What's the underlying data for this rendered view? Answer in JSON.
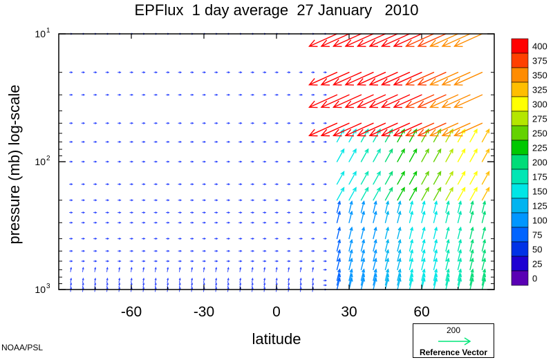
{
  "chart_data": {
    "type": "vector-field",
    "title": "EPFlux  1 day average  27 January   2010",
    "xlabel": "latitude",
    "ylabel": "pressure (mb)  log-scale",
    "x_range": [
      -90,
      90
    ],
    "y_range_mb": [
      1000,
      10
    ],
    "y_scale": "log",
    "x_ticks": [
      -60,
      -30,
      0,
      30,
      60
    ],
    "y_ticks": [
      {
        "value": 10,
        "base": "10",
        "exp": "1"
      },
      {
        "value": 100,
        "base": "10",
        "exp": "2"
      },
      {
        "value": 1000,
        "base": "10",
        "exp": "3"
      }
    ],
    "pressure_levels_mb": [
      1000,
      925,
      850,
      700,
      600,
      500,
      400,
      300,
      250,
      200,
      150,
      100,
      70,
      50,
      30,
      20,
      10
    ],
    "colorbar": {
      "labels": [
        "400",
        "375",
        "350",
        "325",
        "300",
        "275",
        "250",
        "225",
        "200",
        "175",
        "150",
        "125",
        "100",
        "75",
        "50",
        "25",
        "0"
      ],
      "colors": [
        "#ff0000",
        "#ff4000",
        "#ff8c00",
        "#ffbe00",
        "#ffff00",
        "#b4e600",
        "#64d200",
        "#00c800",
        "#00dc78",
        "#00e6b4",
        "#00e6e6",
        "#00b4f0",
        "#0096ff",
        "#0064ff",
        "#0032e6",
        "#1e00d2",
        "#5a00b4"
      ]
    },
    "reference_vector": {
      "magnitude": "200",
      "label": "Reference Vector",
      "color": "#00e678"
    },
    "annotation": "NOAA/PSL"
  }
}
